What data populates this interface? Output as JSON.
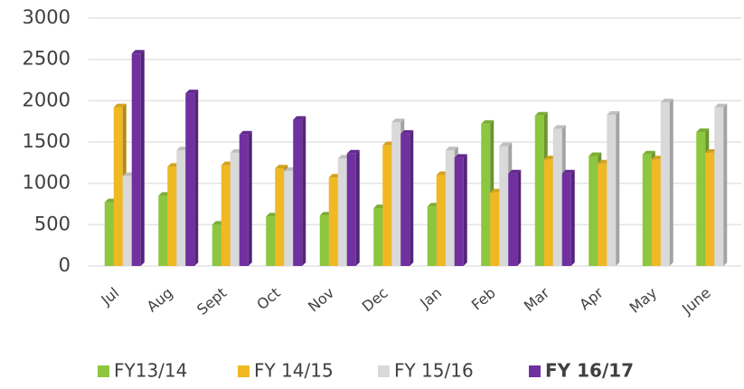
{
  "chart_data": {
    "type": "bar",
    "categories": [
      "Jul",
      "Aug",
      "Sept",
      "Oct",
      "Nov",
      "Dec",
      "Jan",
      "Feb",
      "Mar",
      "Apr",
      "May",
      "June"
    ],
    "series": [
      {
        "name": "FY13/14",
        "color": "#8dc63f",
        "values": [
          770,
          850,
          500,
          600,
          610,
          700,
          720,
          1720,
          1820,
          1330,
          1350,
          1620
        ]
      },
      {
        "name": "FY 14/15",
        "color": "#f0b823",
        "values": [
          1920,
          1200,
          1220,
          1180,
          1070,
          1460,
          1100,
          890,
          1290,
          1240,
          1290,
          1370
        ]
      },
      {
        "name": "FY 15/16",
        "color": "#d9d9d9",
        "values": [
          1090,
          1400,
          1370,
          1150,
          1300,
          1740,
          1400,
          1450,
          1660,
          1830,
          1980,
          1920
        ]
      },
      {
        "name": "FY 16/17",
        "color": "#7030a0",
        "values": [
          2570,
          2090,
          1590,
          1770,
          1360,
          1600,
          1310,
          1120,
          1120,
          null,
          null,
          null
        ]
      }
    ],
    "ylim": [
      0,
      3000
    ],
    "yticks": [
      0,
      500,
      1000,
      1500,
      2000,
      2500,
      3000
    ],
    "grid": true,
    "legend": "bottom"
  }
}
